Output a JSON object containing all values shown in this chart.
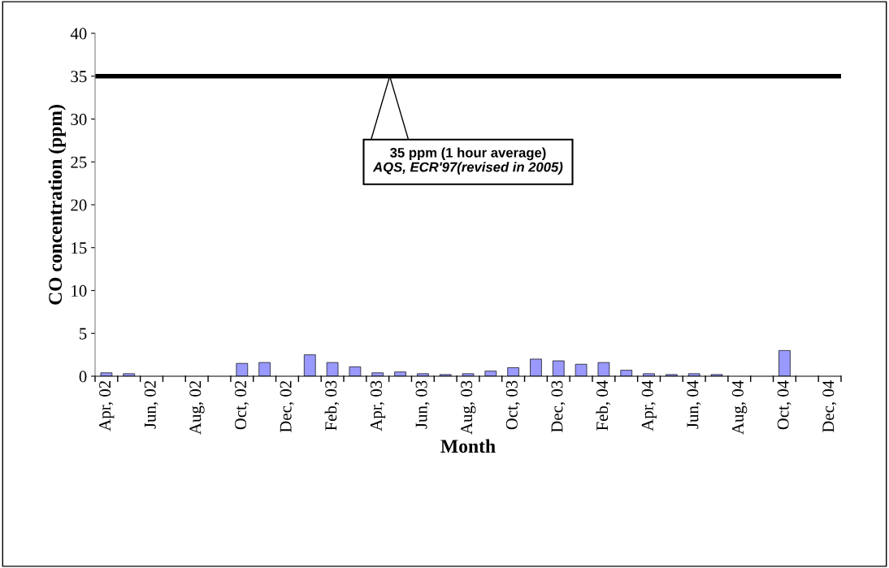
{
  "chart_data": {
    "type": "bar",
    "xlabel": "Month",
    "ylabel": "CO concentration (ppm)",
    "categories": [
      "Apr, 02",
      null,
      "Jun, 02",
      null,
      "Aug, 02",
      null,
      "Oct, 02",
      null,
      "Dec, 02",
      null,
      "Feb, 03",
      null,
      "Apr, 03",
      null,
      "Jun, 03",
      null,
      "Aug, 03",
      null,
      "Oct, 03",
      null,
      "Dec, 03",
      null,
      "Feb, 04",
      null,
      "Apr, 04",
      null,
      "Jun, 04",
      null,
      "Aug, 04",
      null,
      "Oct, 04",
      null,
      "Dec, 04"
    ],
    "values": [
      0.4,
      0.3,
      null,
      null,
      null,
      null,
      1.5,
      1.6,
      null,
      2.5,
      1.6,
      1.1,
      0.4,
      0.5,
      0.3,
      0.2,
      0.3,
      0.6,
      1.0,
      2.0,
      1.8,
      1.4,
      1.6,
      0.7,
      0.3,
      0.2,
      0.3,
      0.2,
      null,
      null,
      3.0,
      null,
      null
    ],
    "color": "#9999ff",
    "ylim": [
      0,
      40
    ],
    "yticks": [
      0,
      5,
      10,
      15,
      20,
      25,
      30,
      35,
      40
    ],
    "ref_lines": [
      {
        "axis": "y",
        "value": 35,
        "label": "35 ppm (1 hour average)",
        "color": "#000000"
      }
    ],
    "annotations": [
      "AQS, ECR'97(revised in 2005)"
    ],
    "grid": false,
    "legend": false
  }
}
